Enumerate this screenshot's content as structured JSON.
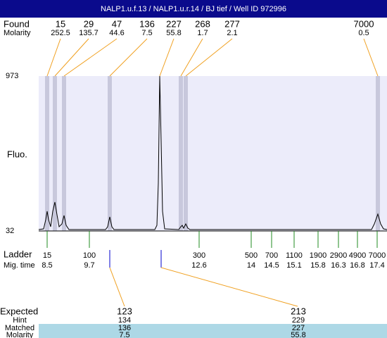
{
  "header": {
    "title": "NALP1.u.f.13 / NALP1.u.r.14 / BJ tief / Well ID 972996"
  },
  "found": {
    "label": "Found",
    "molarity_label": "Molarity",
    "items": [
      {
        "size": "15",
        "molarity": "252.5"
      },
      {
        "size": "29",
        "molarity": "135.7"
      },
      {
        "size": "47",
        "molarity": "44.6"
      },
      {
        "size": "136",
        "molarity": "7.5"
      },
      {
        "size": "227",
        "molarity": "55.8"
      },
      {
        "size": "268",
        "molarity": "1.7"
      },
      {
        "size": "277",
        "molarity": "2.1"
      },
      {
        "size": "7000",
        "molarity": "0.5"
      }
    ]
  },
  "plot": {
    "y_label": "Fluo.",
    "y_max": "973",
    "y_min": "32"
  },
  "ladder": {
    "label": "Ladder",
    "mig_label": "Mig. time",
    "items": [
      {
        "size": "15",
        "mig": "8.5"
      },
      {
        "size": "100",
        "mig": "9.7"
      },
      {
        "size": "300",
        "mig": "12.6"
      },
      {
        "size": "500",
        "mig": "14"
      },
      {
        "size": "700",
        "mig": "14.5"
      },
      {
        "size": "1100",
        "mig": "15.1"
      },
      {
        "size": "1900",
        "mig": "15.8"
      },
      {
        "size": "2900",
        "mig": "16.3"
      },
      {
        "size": "4900",
        "mig": "16.8"
      },
      {
        "size": "7000",
        "mig": "17.4"
      }
    ]
  },
  "expected": {
    "label": "Expected",
    "hint_label": "Hint",
    "matched_label": "Matched",
    "molarity_label": "Molarity",
    "items": [
      {
        "expected": "123",
        "hint": "134",
        "matched": "136",
        "molarity": "7.5"
      },
      {
        "expected": "213",
        "hint": "229",
        "matched": "227",
        "molarity": "55.8"
      }
    ]
  }
}
